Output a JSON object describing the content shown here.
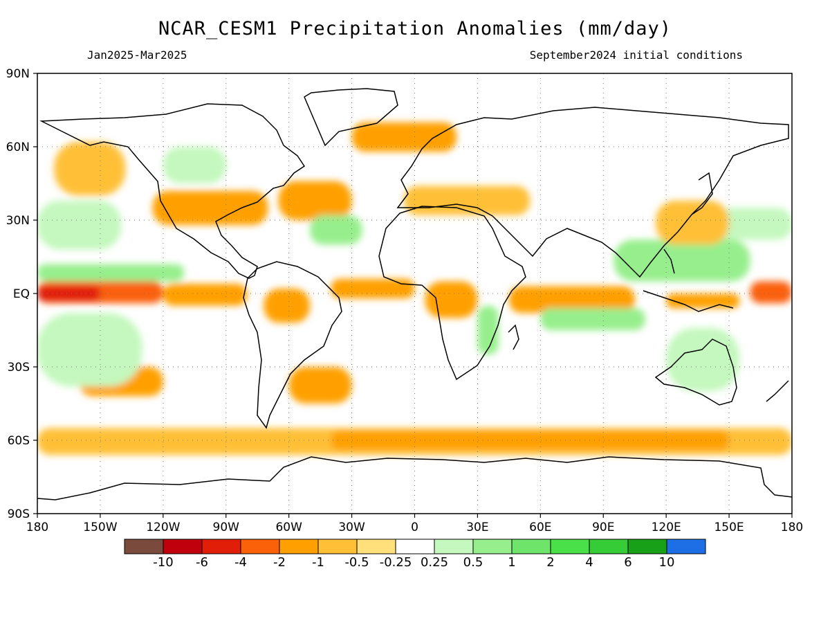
{
  "header": {
    "title": "NCAR_CESM1 Precipitation Anomalies (mm/day)",
    "period": "Jan2025-Mar2025",
    "init": "September2024 initial conditions"
  },
  "axes": {
    "lat_labels": [
      "90N",
      "60N",
      "30N",
      "EQ",
      "30S",
      "60S",
      "90S"
    ],
    "lat_values": [
      90,
      60,
      30,
      0,
      -30,
      -60,
      -90
    ],
    "lon_labels": [
      "180",
      "150W",
      "120W",
      "90W",
      "60W",
      "30W",
      "0",
      "30E",
      "60E",
      "90E",
      "120E",
      "150E",
      "180"
    ],
    "lon_values": [
      -180,
      -150,
      -120,
      -90,
      -60,
      -30,
      0,
      30,
      60,
      90,
      120,
      150,
      180
    ],
    "grid": true
  },
  "colorbar": {
    "colors": [
      "#7a4a3c",
      "#c0000c",
      "#e11f08",
      "#fa6108",
      "#ffa000",
      "#ffc038",
      "#ffe07a",
      "#ffffff",
      "#c4f8be",
      "#96ef8c",
      "#6ee46a",
      "#4ae04a",
      "#36cc38",
      "#18a018",
      "#1e6fe6"
    ],
    "labels": [
      "-10",
      "-6",
      "-4",
      "-2",
      "-1",
      "-0.5",
      "-0.25",
      "0.25",
      "0.5",
      "1",
      "2",
      "4",
      "6",
      "10"
    ]
  },
  "chart_data": {
    "type": "heatmap",
    "title": "NCAR_CESM1 Precipitation Anomalies (mm/day)",
    "subtitle_left": "Jan2025-Mar2025",
    "subtitle_right": "September2024 initial conditions",
    "xlim": [
      -180,
      180
    ],
    "ylim": [
      -90,
      90
    ],
    "units": "mm/day",
    "regions": [
      {
        "lon": [
          -180,
          -120
        ],
        "lat": [
          -4,
          5
        ],
        "value": -2
      },
      {
        "lon": [
          -180,
          -150
        ],
        "lat": [
          -3,
          3
        ],
        "value": -4
      },
      {
        "lon": [
          -120,
          -80
        ],
        "lat": [
          -5,
          4
        ],
        "value": -1
      },
      {
        "lon": [
          -180,
          -110
        ],
        "lat": [
          5,
          12
        ],
        "value": 1
      },
      {
        "lon": [
          -180,
          -140
        ],
        "lat": [
          18,
          38
        ],
        "value": 0.5
      },
      {
        "lon": [
          -172,
          -138
        ],
        "lat": [
          40,
          62
        ],
        "value": -0.5
      },
      {
        "lon": [
          -125,
          -70
        ],
        "lat": [
          28,
          42
        ],
        "value": -1
      },
      {
        "lon": [
          -120,
          -90
        ],
        "lat": [
          45,
          60
        ],
        "value": 0.5
      },
      {
        "lon": [
          -65,
          -30
        ],
        "lat": [
          30,
          46
        ],
        "value": -1
      },
      {
        "lon": [
          -50,
          -25
        ],
        "lat": [
          20,
          32
        ],
        "value": 1
      },
      {
        "lon": [
          -40,
          0
        ],
        "lat": [
          -2,
          6
        ],
        "value": -1
      },
      {
        "lon": [
          -72,
          -50
        ],
        "lat": [
          -12,
          2
        ],
        "value": -1
      },
      {
        "lon": [
          -30,
          20
        ],
        "lat": [
          58,
          70
        ],
        "value": -1
      },
      {
        "lon": [
          -5,
          55
        ],
        "lat": [
          32,
          44
        ],
        "value": -0.5
      },
      {
        "lon": [
          5,
          30
        ],
        "lat": [
          -10,
          5
        ],
        "value": -1
      },
      {
        "lon": [
          45,
          105
        ],
        "lat": [
          -8,
          3
        ],
        "value": -1
      },
      {
        "lon": [
          30,
          40
        ],
        "lat": [
          -25,
          -5
        ],
        "value": 1
      },
      {
        "lon": [
          60,
          110
        ],
        "lat": [
          -15,
          -6
        ],
        "value": 1
      },
      {
        "lon": [
          95,
          160
        ],
        "lat": [
          5,
          22
        ],
        "value": 1
      },
      {
        "lon": [
          120,
          180
        ],
        "lat": [
          22,
          35
        ],
        "value": 0.5
      },
      {
        "lon": [
          115,
          150
        ],
        "lat": [
          20,
          38
        ],
        "value": -0.5
      },
      {
        "lon": [
          160,
          180
        ],
        "lat": [
          -4,
          5
        ],
        "value": -2
      },
      {
        "lon": [
          120,
          155
        ],
        "lat": [
          -6,
          0
        ],
        "value": -1
      },
      {
        "lon": [
          -180,
          180
        ],
        "lat": [
          -66,
          -55
        ],
        "value": -0.5
      },
      {
        "lon": [
          -40,
          150
        ],
        "lat": [
          -64,
          -56
        ],
        "value": -1
      },
      {
        "lon": [
          -160,
          -120
        ],
        "lat": [
          -42,
          -30
        ],
        "value": -1
      },
      {
        "lon": [
          -180,
          -130
        ],
        "lat": [
          -38,
          -8
        ],
        "value": 0.5
      },
      {
        "lon": [
          120,
          155
        ],
        "lat": [
          -40,
          -14
        ],
        "value": 0.5
      },
      {
        "lon": [
          -60,
          -30
        ],
        "lat": [
          -45,
          -30
        ],
        "value": -1
      }
    ]
  }
}
